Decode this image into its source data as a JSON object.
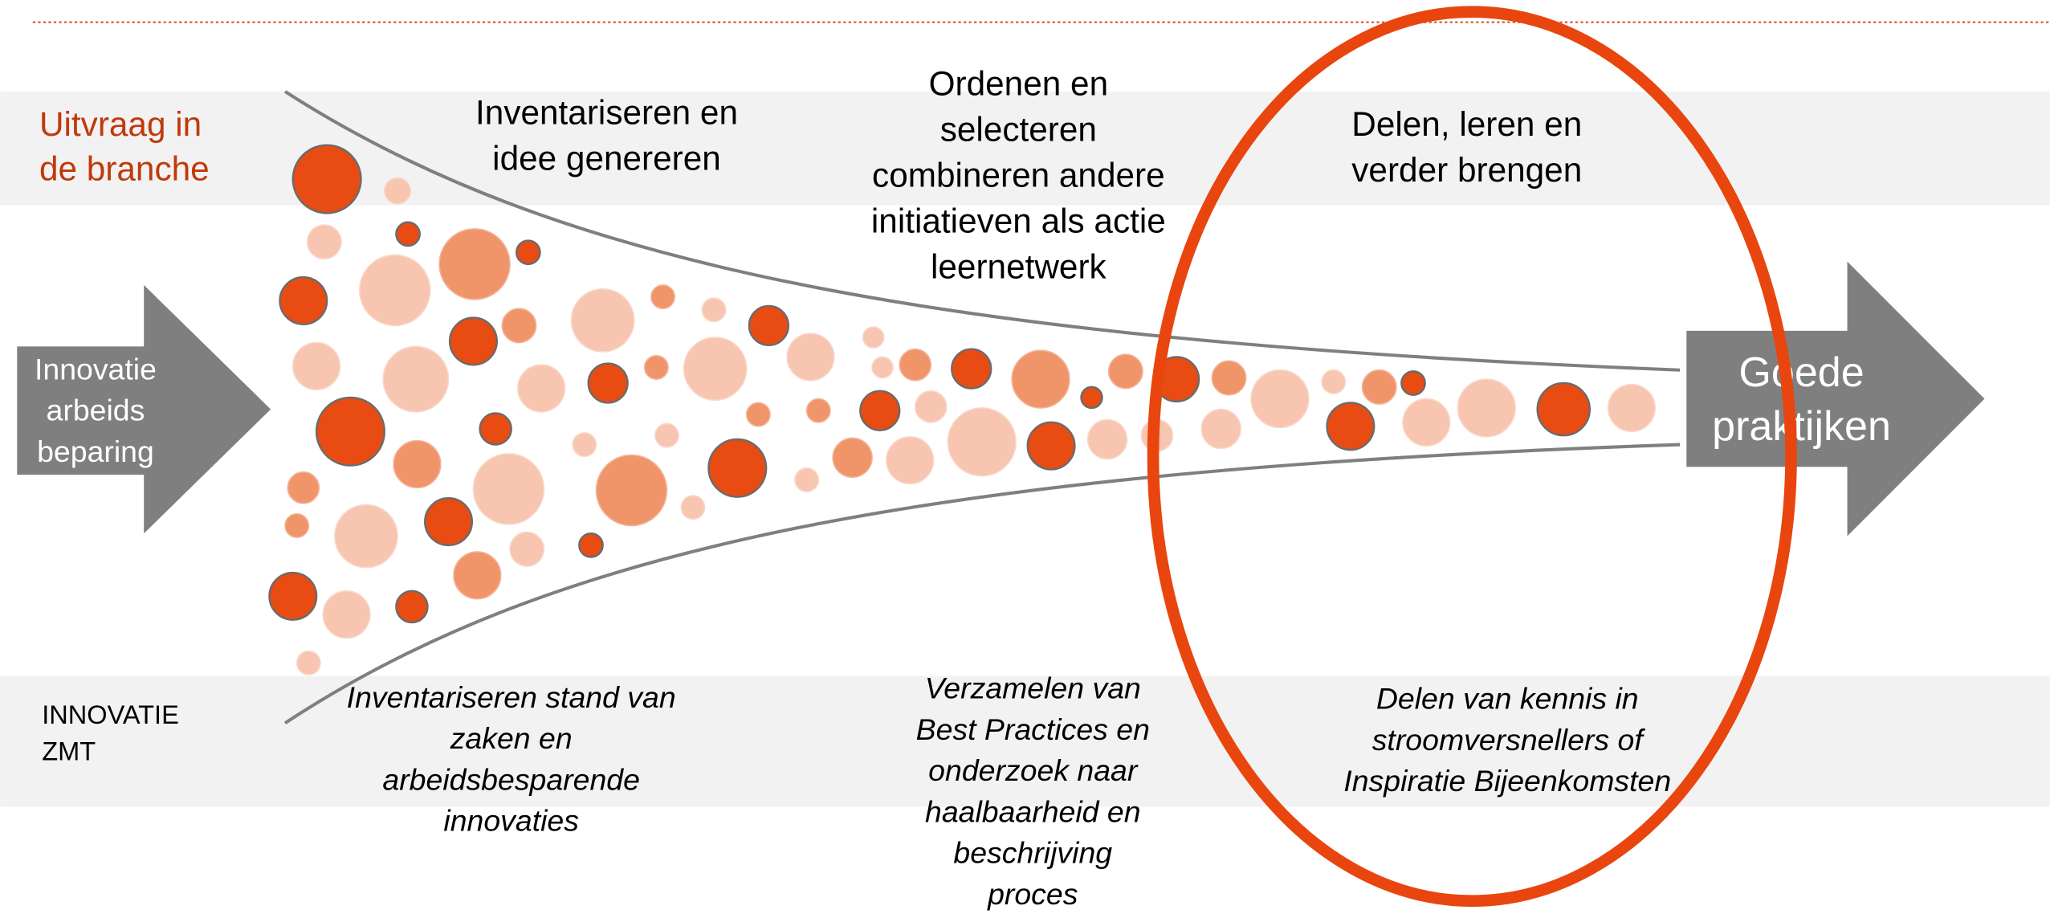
{
  "left_label": [
    "Uitvraag in",
    "de branche"
  ],
  "bottom_left_label": [
    "INNOVATIE",
    "ZMT"
  ],
  "input_arrow": [
    "Innovatie",
    "arbeids",
    "beparing"
  ],
  "output_arrow": [
    "Goede",
    "praktijken"
  ],
  "stages": [
    {
      "top": [
        "Inventariseren en",
        "idee genereren"
      ],
      "bottom": [
        "Inventariseren stand van",
        "zaken en",
        "arbeidsbesparende",
        "innovaties"
      ]
    },
    {
      "top": [
        "Ordenen en",
        "selecteren",
        "combineren andere",
        "initiatieven als actie",
        "leernetwerk"
      ],
      "bottom": [
        "Verzamelen van",
        "Best Practices en",
        "onderzoek naar",
        "haalbaarheid en",
        "beschrijving",
        "proces"
      ]
    },
    {
      "top": [
        "Delen, leren en",
        "verder brengen"
      ],
      "bottom": [
        "Delen van kennis in",
        "stroomversnellers of",
        "Inspiratie Bijeenkomsten"
      ]
    }
  ]
}
